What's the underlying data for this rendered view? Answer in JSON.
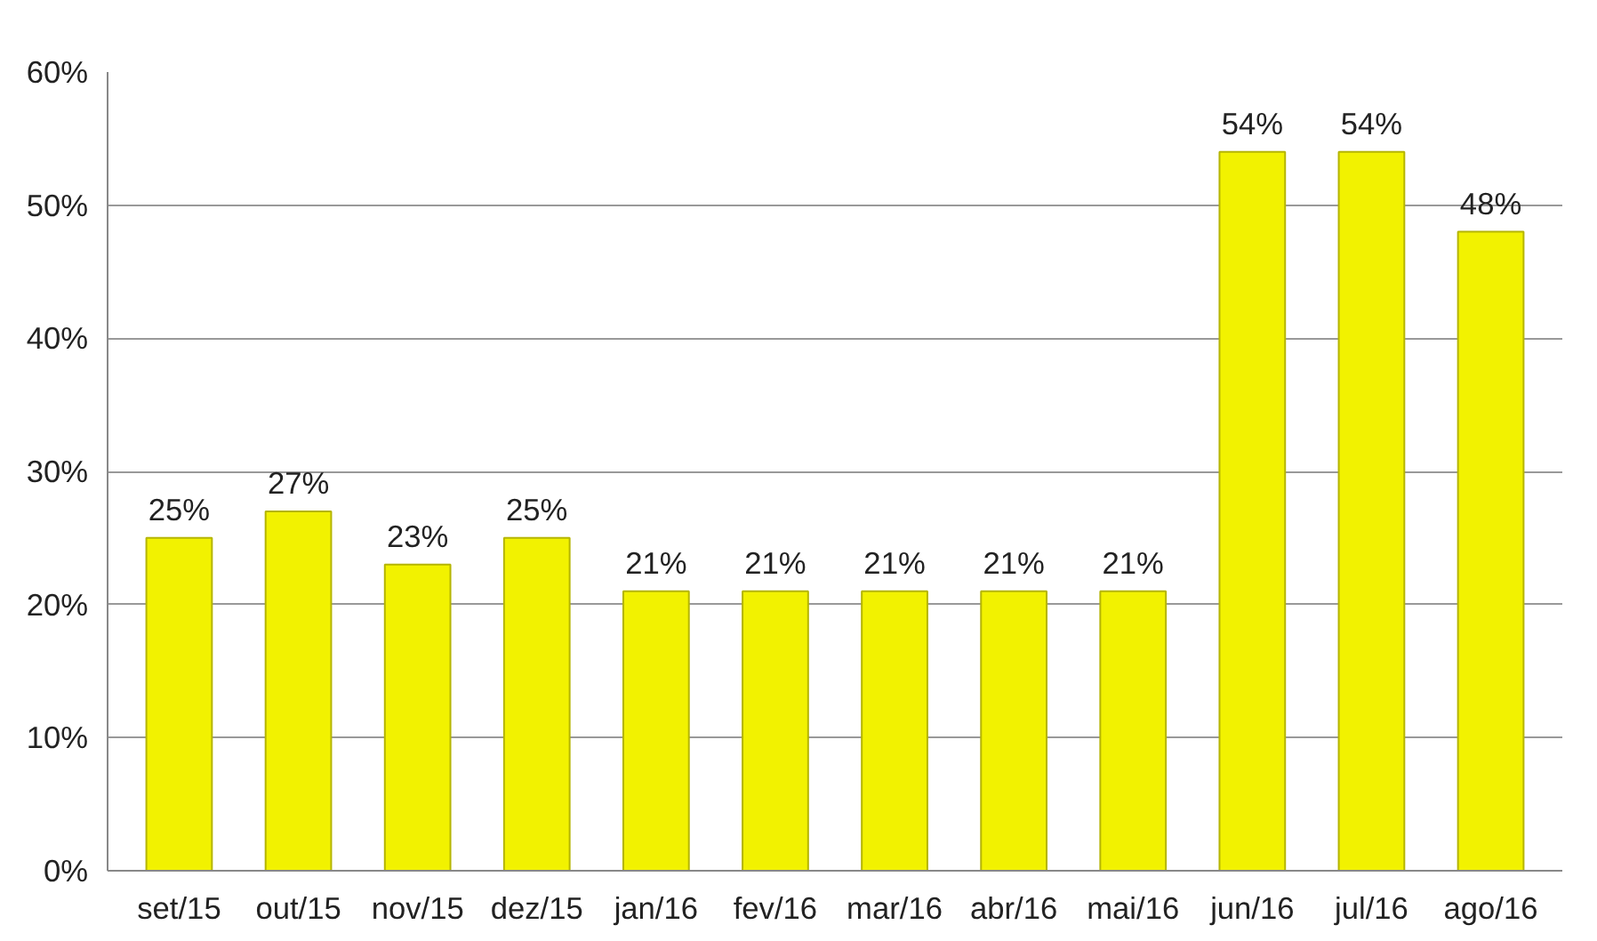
{
  "chart_data": {
    "type": "bar",
    "categories": [
      "set/15",
      "out/15",
      "nov/15",
      "dez/15",
      "jan/16",
      "fev/16",
      "mar/16",
      "abr/16",
      "mai/16",
      "jun/16",
      "jul/16",
      "ago/16"
    ],
    "values": [
      25,
      27,
      23,
      25,
      21,
      21,
      21,
      21,
      21,
      54,
      54,
      48
    ],
    "value_labels": [
      "25%",
      "27%",
      "23%",
      "25%",
      "21%",
      "21%",
      "21%",
      "21%",
      "21%",
      "54%",
      "54%",
      "48%"
    ],
    "color": "#f2f200",
    "ylim": [
      0,
      60
    ],
    "yticks": [
      {
        "value": 0,
        "label": "0%"
      },
      {
        "value": 10,
        "label": "10%"
      },
      {
        "value": 20,
        "label": "20%"
      },
      {
        "value": 30,
        "label": "30%"
      },
      {
        "value": 40,
        "label": "40%"
      },
      {
        "value": 50,
        "label": "50%"
      },
      {
        "value": 60,
        "label": "60%"
      }
    ],
    "grid": "y"
  }
}
